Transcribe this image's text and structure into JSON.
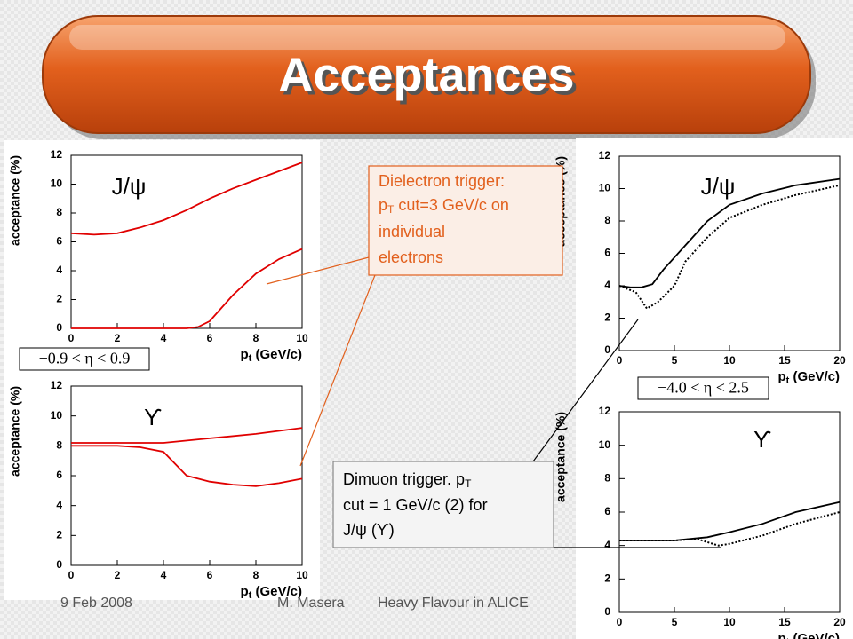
{
  "slide": {
    "title": "Acceptances",
    "callout_electron": [
      "Dielectron trigger:",
      "p",
      "T",
      " cut=3 GeV/c on",
      "individual",
      "electrons"
    ],
    "callout_muon": [
      "Dimuon trigger. p",
      "T",
      "cut = 1 GeV/c (2) for",
      "J/ψ (ϒ)"
    ],
    "footer": {
      "date": "9 Feb 2008",
      "author": "M. Masera",
      "talk": "Heavy Flavour in ALICE"
    }
  },
  "chart_data": [
    {
      "type": "line",
      "annotation": "J/ψ",
      "region": "−0.9 < η < 0.9",
      "ylabel": "acceptance (%)",
      "xlabel": [
        "p",
        "t",
        " (GeV/c)"
      ],
      "xlim": [
        0,
        10
      ],
      "ylim": [
        0,
        12
      ],
      "xticks": [
        0,
        2,
        4,
        6,
        8,
        10
      ],
      "yticks": [
        0,
        2,
        4,
        6,
        8,
        10,
        12
      ],
      "series": [
        {
          "color": "#e00000",
          "style": "solid",
          "x": [
            0,
            1,
            2,
            3,
            4,
            5,
            6,
            7,
            8,
            9,
            10
          ],
          "values": [
            6.6,
            6.5,
            6.6,
            7.0,
            7.5,
            8.2,
            9.0,
            9.7,
            10.3,
            10.9,
            11.5
          ]
        },
        {
          "color": "#e00000",
          "style": "solid",
          "x": [
            0,
            5,
            5.5,
            6,
            7,
            8,
            9,
            10
          ],
          "values": [
            0,
            0,
            0.1,
            0.5,
            2.3,
            3.8,
            4.8,
            5.5
          ]
        }
      ]
    },
    {
      "type": "line",
      "annotation": "ϒ",
      "ylabel": "acceptance (%)",
      "xlabel": [
        "p",
        "t",
        " (GeV/c)"
      ],
      "xlim": [
        0,
        10
      ],
      "ylim": [
        0,
        12
      ],
      "xticks": [
        0,
        2,
        4,
        6,
        8,
        10
      ],
      "yticks": [
        0,
        2,
        4,
        6,
        8,
        10,
        12
      ],
      "series": [
        {
          "color": "#e00000",
          "style": "solid",
          "x": [
            0,
            2,
            4,
            6,
            8,
            10
          ],
          "values": [
            8.2,
            8.2,
            8.2,
            8.5,
            8.8,
            9.2
          ]
        },
        {
          "color": "#e00000",
          "style": "solid",
          "x": [
            0,
            2,
            3,
            4,
            5,
            6,
            7,
            8,
            9,
            10
          ],
          "values": [
            8.0,
            8.0,
            7.9,
            7.6,
            6.0,
            5.6,
            5.4,
            5.3,
            5.5,
            5.8
          ]
        }
      ]
    },
    {
      "type": "line",
      "annotation": "J/ψ",
      "region": "−4.0 < η < 2.5",
      "ylabel": "acceptance (%)",
      "xlabel": [
        "p",
        "t",
        " (GeV/c)"
      ],
      "xlim": [
        0,
        20
      ],
      "ylim": [
        0,
        12
      ],
      "xticks": [
        0,
        5,
        10,
        15,
        20
      ],
      "yticks": [
        0,
        2,
        4,
        6,
        8,
        10,
        12
      ],
      "series": [
        {
          "color": "#000000",
          "style": "solid",
          "x": [
            0,
            1,
            2,
            3,
            4,
            6,
            8,
            10,
            13,
            16,
            20
          ],
          "values": [
            4.0,
            3.9,
            3.9,
            4.1,
            5.0,
            6.5,
            8.0,
            9.0,
            9.7,
            10.2,
            10.6
          ]
        },
        {
          "color": "#000000",
          "style": "dotted",
          "x": [
            0,
            1.5,
            2.5,
            3.5,
            5,
            6,
            8,
            10,
            13,
            16,
            20
          ],
          "values": [
            4.0,
            3.6,
            2.6,
            3.0,
            4.0,
            5.5,
            7.0,
            8.2,
            9.0,
            9.6,
            10.2
          ]
        }
      ]
    },
    {
      "type": "line",
      "annotation": "ϒ",
      "ylabel": "acceptance (%)",
      "xlabel": [
        "p",
        "t",
        " (GeV/c)"
      ],
      "xlim": [
        0,
        20
      ],
      "ylim": [
        0,
        12
      ],
      "xticks": [
        0,
        5,
        10,
        15,
        20
      ],
      "yticks": [
        0,
        2,
        4,
        6,
        8,
        10,
        12
      ],
      "series": [
        {
          "color": "#000000",
          "style": "solid",
          "x": [
            0,
            5,
            8,
            10,
            13,
            16,
            20
          ],
          "values": [
            4.3,
            4.3,
            4.5,
            4.8,
            5.3,
            6.0,
            6.6
          ]
        },
        {
          "color": "#000000",
          "style": "dotted",
          "x": [
            0,
            5,
            7,
            9,
            10,
            13,
            16,
            20
          ],
          "values": [
            4.3,
            4.3,
            4.4,
            4.0,
            4.1,
            4.6,
            5.3,
            6.0
          ]
        }
      ]
    }
  ]
}
